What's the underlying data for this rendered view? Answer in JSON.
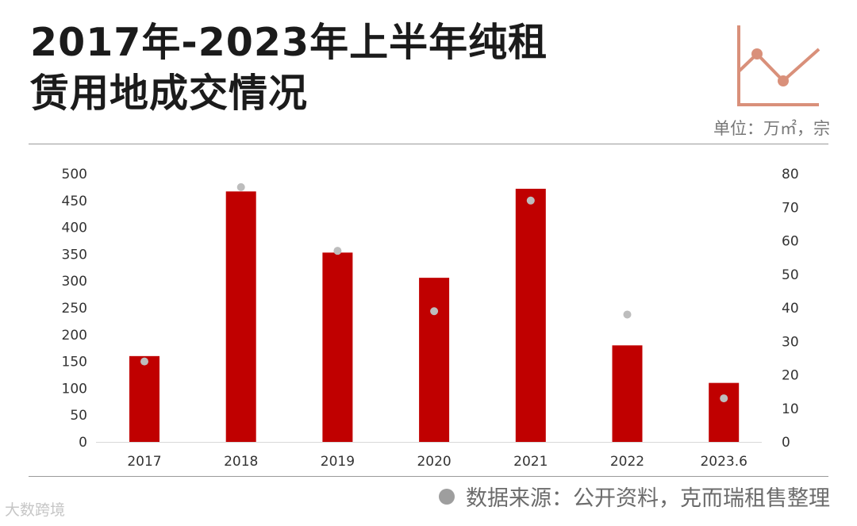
{
  "title_line1": "2017年-2023年上半年纯租",
  "title_line2": "赁用地成交情况",
  "unit_label": "单位：万㎡，宗",
  "source_text": "数据来源：公开资料，克而瑞租售整理",
  "watermark_tag": "大数跨境",
  "colors": {
    "bar": "#c00000",
    "dot": "#bdbdbd",
    "logo": "#d9907a"
  },
  "chart_data": {
    "type": "bar",
    "categories": [
      "2017",
      "2018",
      "2019",
      "2020",
      "2021",
      "2022",
      "2023.6"
    ],
    "series": [
      {
        "axis": "left",
        "type": "bar",
        "values": [
          160,
          467,
          353,
          306,
          472,
          180,
          110
        ]
      },
      {
        "axis": "right",
        "type": "scatter",
        "values": [
          24,
          76,
          57,
          39,
          72,
          38,
          13
        ]
      }
    ],
    "ylim_left": [
      0,
      500
    ],
    "yticks_left": [
      "500",
      "450",
      "400",
      "350",
      "300",
      "250",
      "200",
      "150",
      "100",
      "50",
      "0"
    ],
    "ylim_right": [
      0,
      80
    ],
    "yticks_right": [
      "80",
      "70",
      "60",
      "50",
      "40",
      "30",
      "20",
      "10",
      "0"
    ],
    "grid": false
  }
}
